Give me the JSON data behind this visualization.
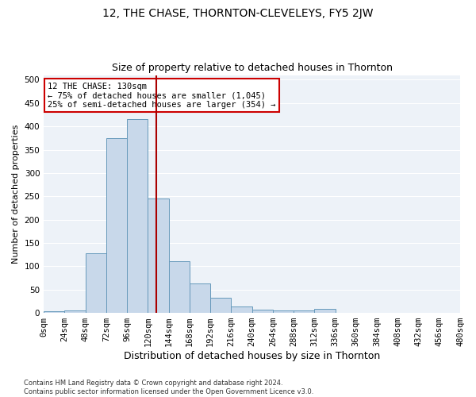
{
  "title": "12, THE CHASE, THORNTON-CLEVELEYS, FY5 2JW",
  "subtitle": "Size of property relative to detached houses in Thornton",
  "xlabel": "Distribution of detached houses by size in Thornton",
  "ylabel": "Number of detached properties",
  "bar_values": [
    3,
    5,
    128,
    375,
    415,
    245,
    110,
    63,
    32,
    14,
    7,
    5,
    5,
    8,
    0,
    0,
    0,
    0,
    0,
    0
  ],
  "bar_color": "#c8d8ea",
  "bar_edge_color": "#6699bb",
  "bin_starts": [
    0,
    24,
    48,
    72,
    96,
    120,
    144,
    168,
    192,
    216,
    240,
    264,
    288,
    312,
    336,
    360,
    384,
    408,
    432,
    456
  ],
  "bin_width": 24,
  "xtick_labels": [
    "0sqm",
    "24sqm",
    "48sqm",
    "72sqm",
    "96sqm",
    "120sqm",
    "144sqm",
    "168sqm",
    "192sqm",
    "216sqm",
    "240sqm",
    "264sqm",
    "288sqm",
    "312sqm",
    "336sqm",
    "360sqm",
    "384sqm",
    "408sqm",
    "432sqm",
    "456sqm",
    "480sqm"
  ],
  "ylim": [
    0,
    510
  ],
  "yticks": [
    0,
    50,
    100,
    150,
    200,
    250,
    300,
    350,
    400,
    450,
    500
  ],
  "property_size": 130,
  "vline_color": "#aa0000",
  "annotation_text": "12 THE CHASE: 130sqm\n← 75% of detached houses are smaller (1,045)\n25% of semi-detached houses are larger (354) →",
  "annotation_box_color": "#ffffff",
  "annotation_box_edge": "#cc0000",
  "bg_color": "#edf2f8",
  "grid_color": "#ffffff",
  "footer": "Contains HM Land Registry data © Crown copyright and database right 2024.\nContains public sector information licensed under the Open Government Licence v3.0.",
  "title_fontsize": 10,
  "subtitle_fontsize": 9,
  "xlabel_fontsize": 9,
  "ylabel_fontsize": 8
}
